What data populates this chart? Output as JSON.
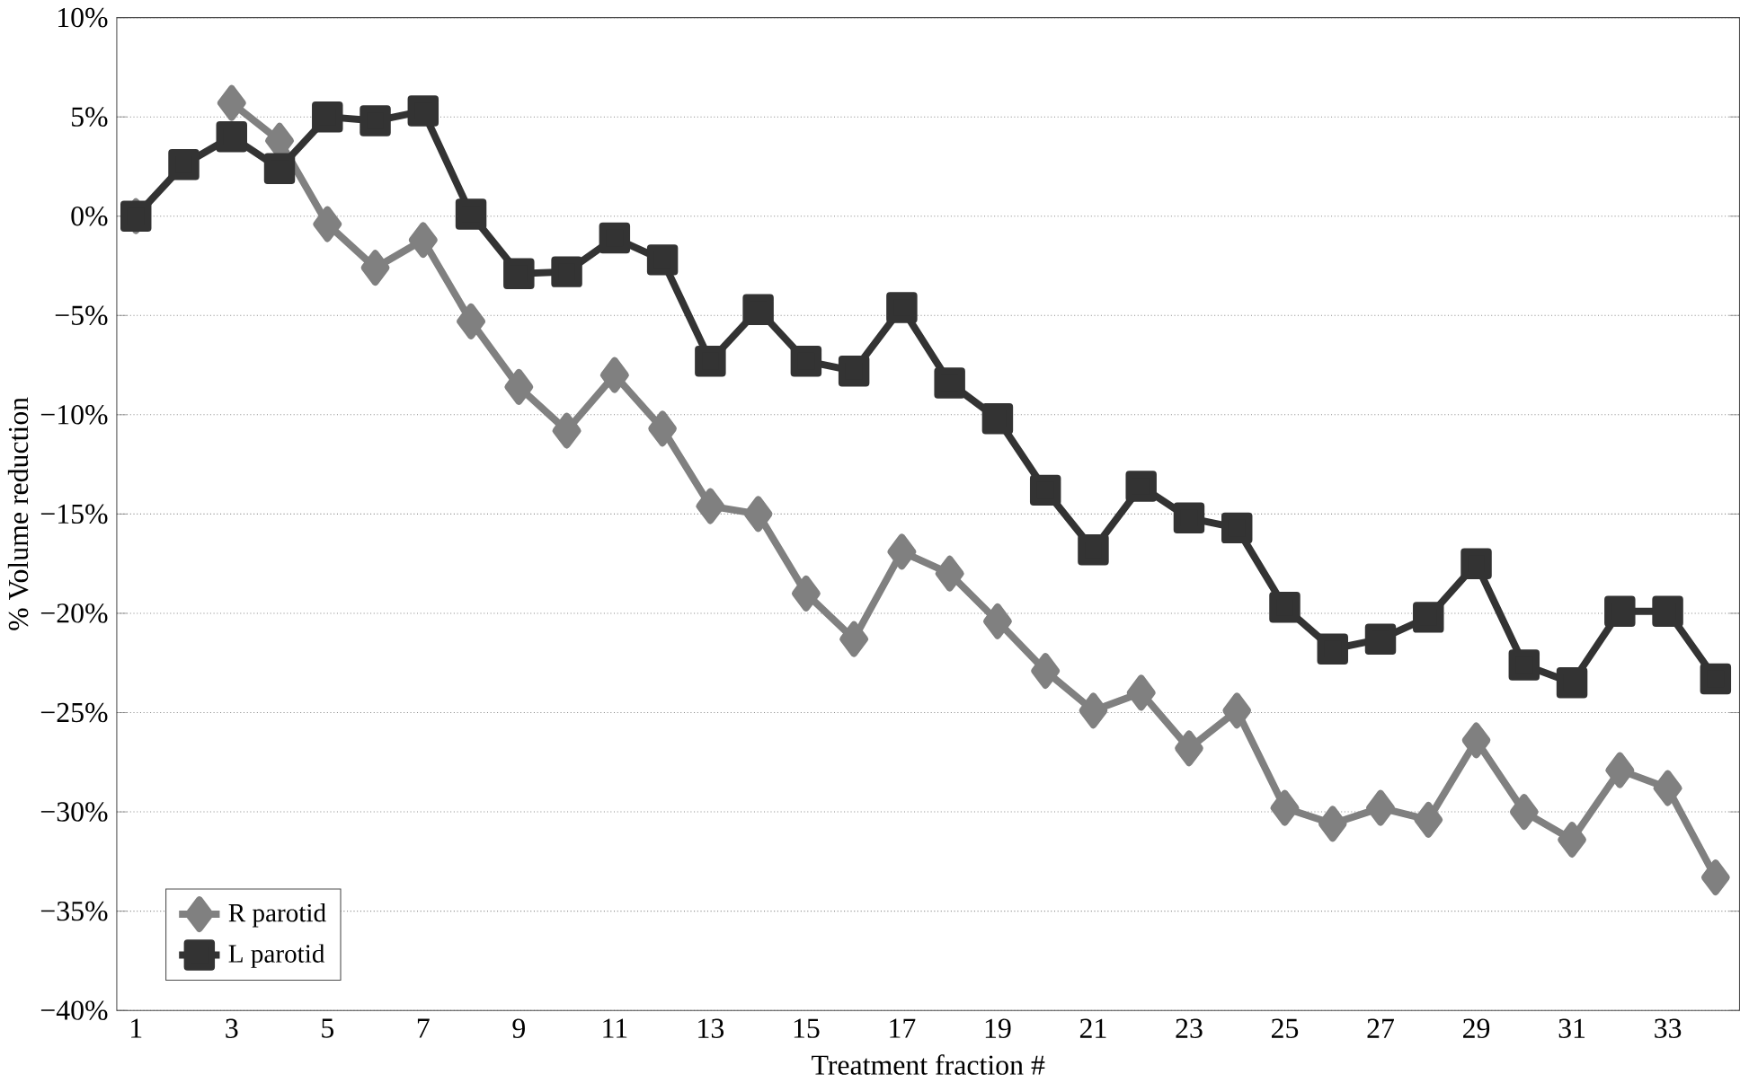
{
  "chart_data": {
    "type": "line",
    "xlabel": "Treatment fraction #",
    "ylabel": "% Volume reduction",
    "x": [
      1,
      2,
      3,
      4,
      5,
      6,
      7,
      8,
      9,
      10,
      11,
      12,
      13,
      14,
      15,
      16,
      17,
      18,
      19,
      20,
      21,
      22,
      23,
      24,
      25,
      26,
      27,
      28,
      29,
      30,
      31,
      32,
      33,
      34
    ],
    "series": [
      {
        "name": "R parotid",
        "color": "#808080",
        "marker": "diamond",
        "values": [
          0,
          null,
          5.7,
          3.8,
          -0.4,
          -2.6,
          -1.2,
          -5.3,
          -8.6,
          -10.8,
          -8.0,
          -10.7,
          -14.6,
          -15.0,
          -19.0,
          -21.3,
          -16.9,
          -18.0,
          -20.4,
          -22.9,
          -24.9,
          -24.0,
          -26.8,
          -24.9,
          -29.8,
          -30.6,
          -29.8,
          -30.4,
          -26.4,
          -30.0,
          -31.4,
          -27.9,
          -28.8,
          -33.3
        ]
      },
      {
        "name": "L parotid",
        "color": "#333333",
        "marker": "square",
        "values": [
          0,
          2.6,
          4.0,
          2.4,
          5.0,
          4.8,
          5.3,
          0.1,
          -2.9,
          -2.8,
          -1.1,
          -2.2,
          -7.3,
          -4.7,
          -7.3,
          -7.8,
          -4.6,
          -8.4,
          -10.2,
          -13.8,
          -16.8,
          -13.6,
          -15.2,
          -15.7,
          -19.7,
          -21.8,
          -21.3,
          -20.2,
          -17.5,
          -22.6,
          -23.5,
          -19.9,
          -19.9,
          -23.3
        ]
      }
    ],
    "xlim": [
      0.6,
      34.5
    ],
    "xticks": [
      1,
      3,
      5,
      7,
      9,
      11,
      13,
      15,
      17,
      19,
      21,
      23,
      25,
      27,
      29,
      31,
      33
    ],
    "ylim": [
      -40,
      10
    ],
    "yticks": [
      {
        "value": 10,
        "label": "10%"
      },
      {
        "value": 5,
        "label": "5%"
      },
      {
        "value": 0,
        "label": "0%"
      },
      {
        "value": -5,
        "label": "−5%"
      },
      {
        "value": -10,
        "label": "−10%"
      },
      {
        "value": -15,
        "label": "−15%"
      },
      {
        "value": -20,
        "label": "−20%"
      },
      {
        "value": -25,
        "label": "−25%"
      },
      {
        "value": -30,
        "label": "−30%"
      },
      {
        "value": -35,
        "label": "−35%"
      },
      {
        "value": -40,
        "label": "−40%"
      }
    ],
    "grid": "y",
    "legend": "bottom left",
    "line_style": "solid"
  }
}
